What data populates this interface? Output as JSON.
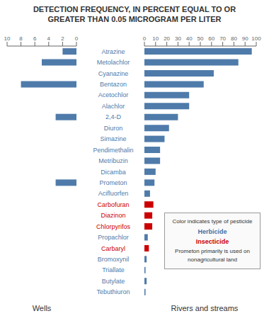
{
  "chart_data": [
    {
      "type": "bar",
      "orientation": "horizontal",
      "title": "DETECTION FREQUENCY, IN PERCENT EQUAL TO OR\nGREATER THAN 0.05 MICROGRAM PER LITER",
      "xlabel": "Wells",
      "categories": [
        "Atrazine",
        "Metolachlor",
        "Cyanazine",
        "Bentazon",
        "Acetochlor",
        "Alachlor",
        "2,4-D",
        "Diuron",
        "Simazine",
        "Pendimethalin",
        "Metribuzin",
        "Dicamba",
        "Prometon",
        "Acifluorfen",
        "Carbofuran",
        "Diazinon",
        "Chlorpyrifos",
        "Propachlor",
        "Carbaryl",
        "Bromoxynil",
        "Triallate",
        "Butylate",
        "Tebuthiuron"
      ],
      "values": [
        2,
        5,
        0,
        8,
        0,
        0,
        3,
        0,
        0,
        0,
        0,
        0,
        3,
        0,
        0,
        0,
        0,
        0,
        0,
        0,
        0,
        0,
        0
      ],
      "color": "#4f7baa",
      "xlim": [
        10,
        0
      ],
      "xticks": [
        0,
        2,
        4,
        6,
        8,
        10
      ]
    },
    {
      "type": "bar",
      "orientation": "horizontal",
      "xlabel": "Rivers and streams",
      "categories": [
        "Atrazine",
        "Metolachlor",
        "Cyanazine",
        "Bentazon",
        "Acetochlor",
        "Alachlor",
        "2,4-D",
        "Diuron",
        "Simazine",
        "Pendimethalin",
        "Metribuzin",
        "Dicamba",
        "Prometon",
        "Acifluorfen",
        "Carbofuran",
        "Diazinon",
        "Chlorpyrifos",
        "Propachlor",
        "Carbaryl",
        "Bromoxynil",
        "Triallate",
        "Butylate",
        "Tebuthiuron"
      ],
      "values": [
        96,
        84,
        62,
        53,
        40,
        40,
        30,
        22,
        18,
        14,
        14,
        10,
        9,
        5,
        8,
        7,
        7,
        3,
        4,
        2,
        1,
        2,
        1
      ],
      "colors": [
        "#4f7baa",
        "#4f7baa",
        "#4f7baa",
        "#4f7baa",
        "#4f7baa",
        "#4f7baa",
        "#4f7baa",
        "#4f7baa",
        "#4f7baa",
        "#4f7baa",
        "#4f7baa",
        "#4f7baa",
        "#4f7baa",
        "#4f7baa",
        "#cc0000",
        "#cc0000",
        "#cc0000",
        "#4f7baa",
        "#cc0000",
        "#4f7baa",
        "#4f7baa",
        "#4f7baa",
        "#4f7baa"
      ],
      "xlim": [
        0,
        100
      ],
      "xticks": [
        0,
        10,
        20,
        30,
        40,
        50,
        60,
        70,
        80,
        90,
        100
      ],
      "tick_labels": "x",
      "annotations": [
        {
          "text": "Color indicates type of pesticide"
        },
        {
          "text": "Herbicide",
          "color": "#4472a8"
        },
        {
          "text": "Insecticide",
          "color": "#cc0000"
        },
        {
          "text": "Prometon primarily is used on nonagricultural land"
        }
      ]
    }
  ]
}
